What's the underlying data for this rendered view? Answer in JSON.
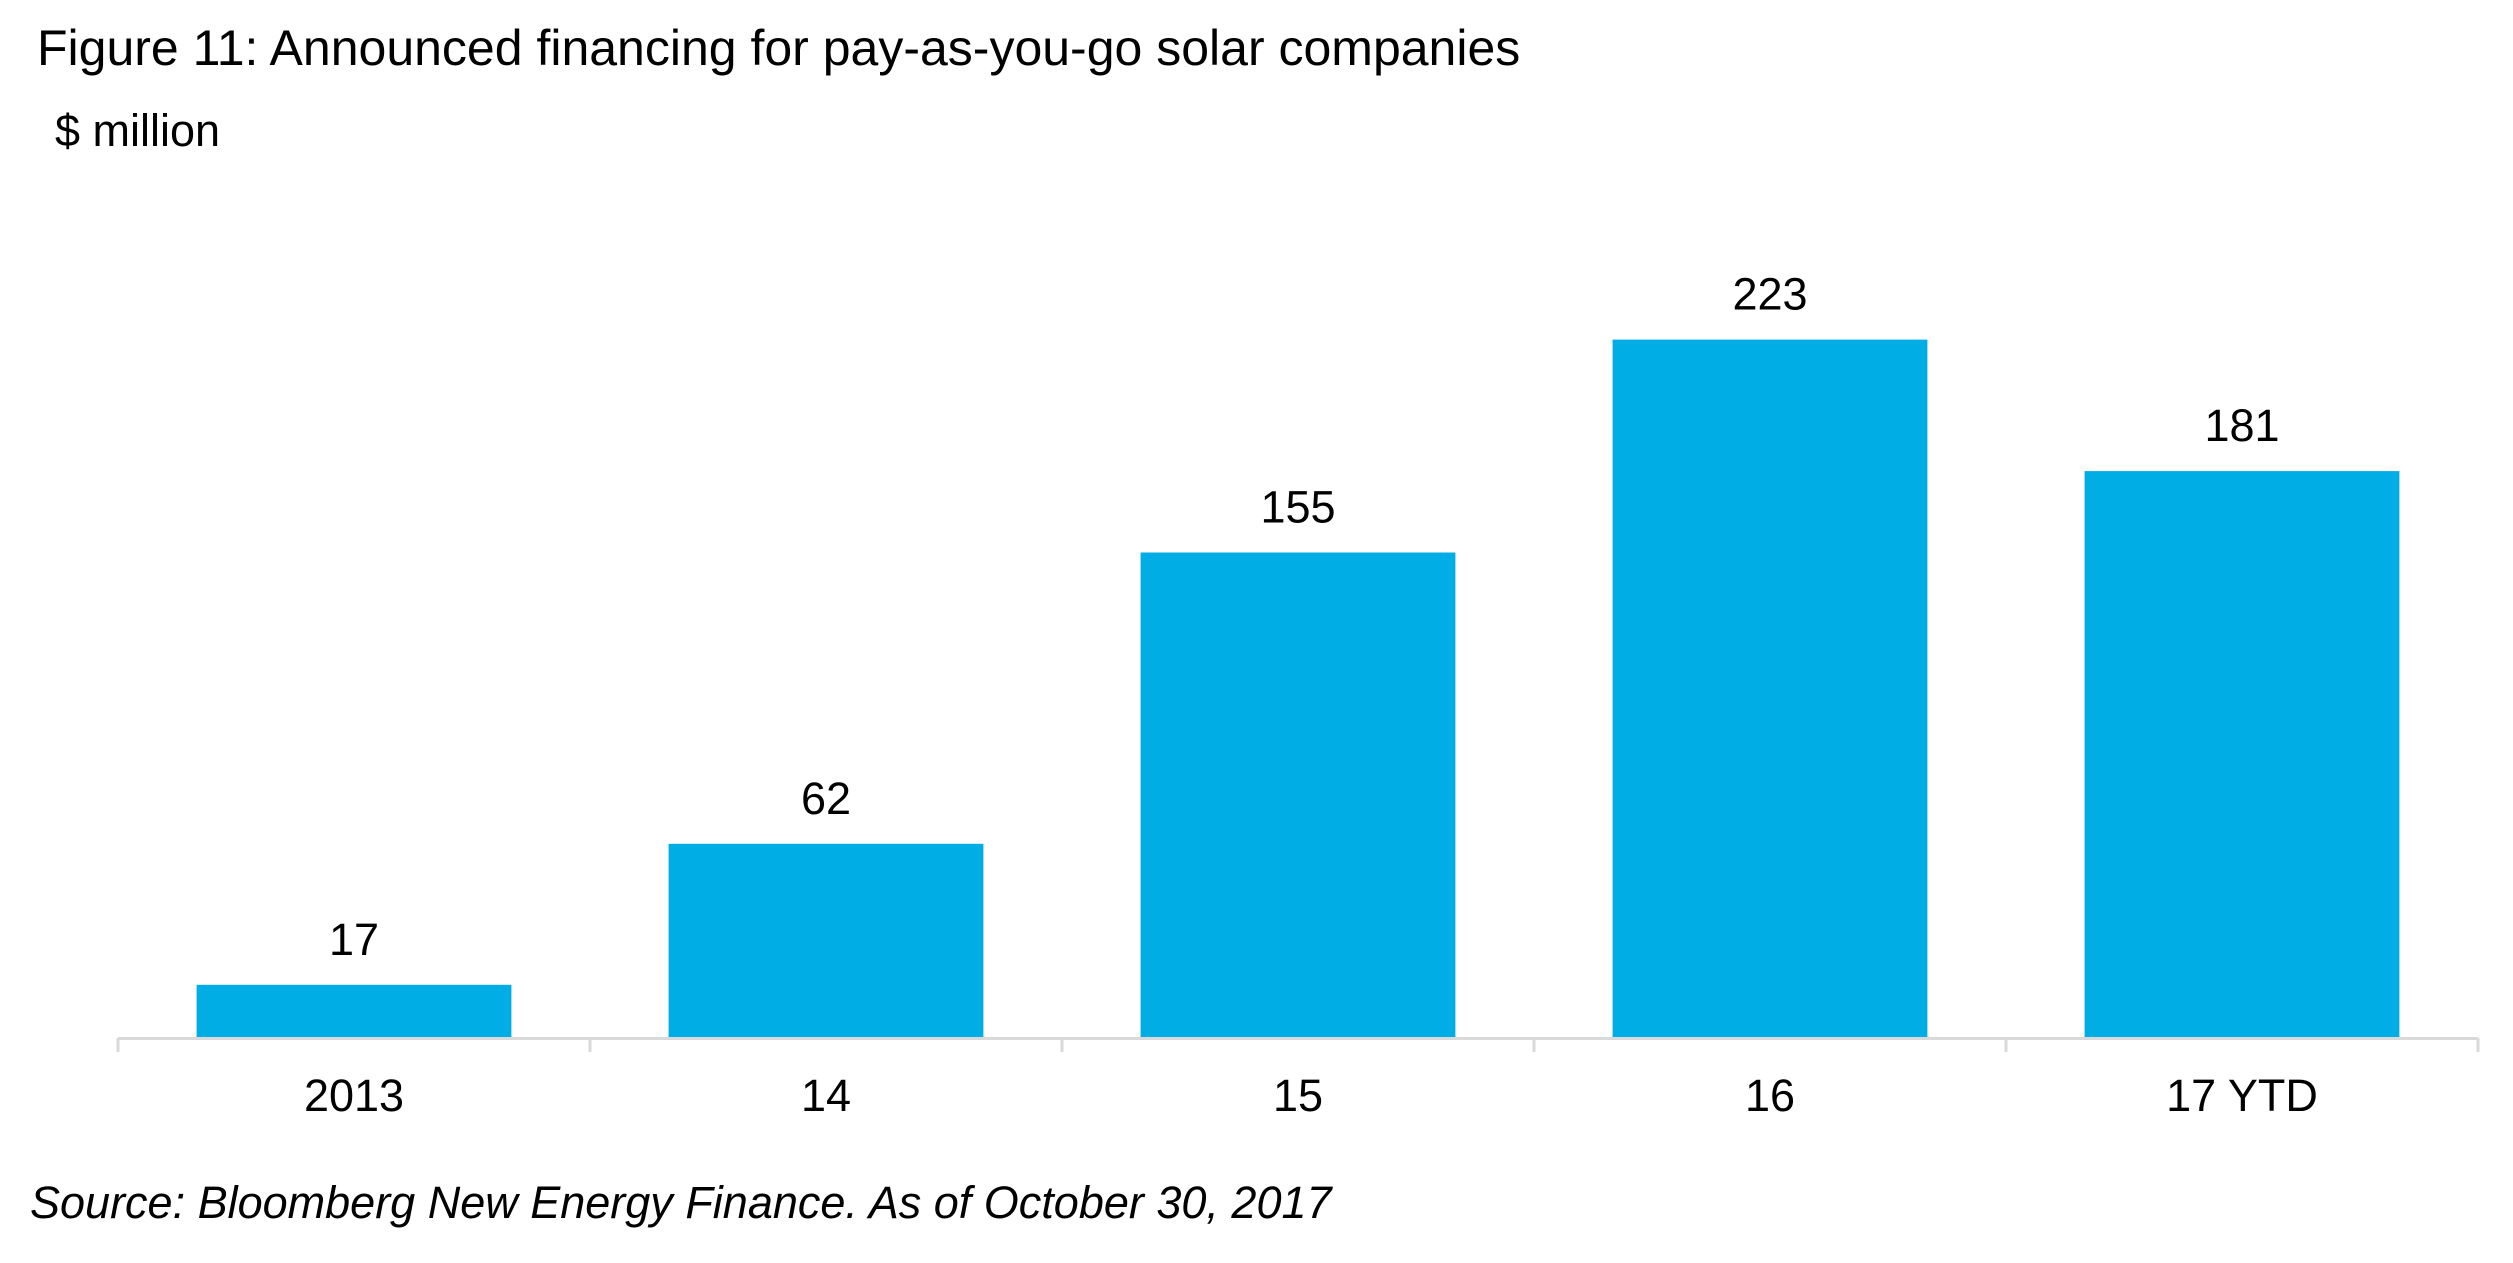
{
  "figure_title": "Figure 11: Announced financing for pay-as-you-go solar companies",
  "unit_label": "$ million",
  "source_note": "Source: Bloomberg New Energy Finance. As of October 30, 2017",
  "chart_data": {
    "type": "bar",
    "title": "Figure 11: Announced financing for pay-as-you-go solar companies",
    "ylabel": "$ million",
    "xlabel": "",
    "categories": [
      "2013",
      "14",
      "15",
      "16",
      "17 YTD"
    ],
    "values": [
      17,
      62,
      155,
      223,
      181
    ],
    "data_labels": [
      "17",
      "62",
      "155",
      "223",
      "181"
    ],
    "ylim": [
      0,
      250
    ],
    "grid": false,
    "legend": "none",
    "bar_color": "#00ADE4",
    "axis_color": "#D9D9D9"
  }
}
